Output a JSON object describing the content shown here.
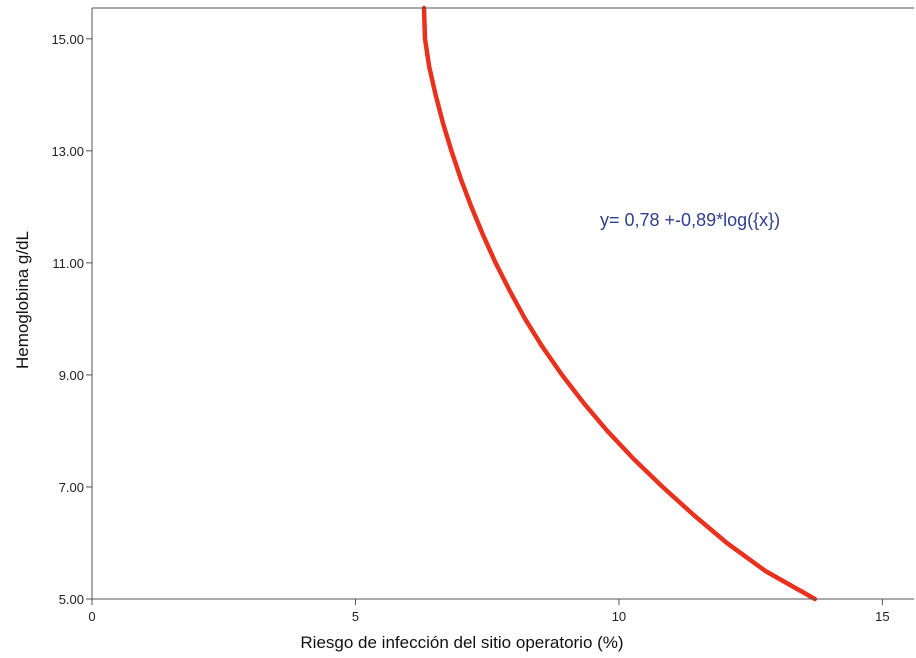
{
  "chart_data": {
    "type": "line",
    "title": "",
    "xlabel": "Riesgo de infección del sitio operatorio (%)",
    "ylabel": "Hemoglobina g/dL",
    "xlim": [
      0,
      15.6
    ],
    "ylim": [
      5.0,
      15.55
    ],
    "x_ticks": [
      0,
      5,
      10,
      15
    ],
    "x_tick_labels": [
      "0",
      "5",
      "10",
      "15"
    ],
    "y_ticks": [
      5,
      7,
      9,
      11,
      13,
      15
    ],
    "y_tick_labels": [
      "5.00",
      "7.00",
      "9.00",
      "11.00",
      "13.00",
      "15.00"
    ],
    "grid": false,
    "annotation": "y= 0,78 +-0,89*log({x})",
    "series": [
      {
        "color": "#e8321e",
        "points": [
          {
            "x": 6.3,
            "y": 15.55
          },
          {
            "x": 6.32,
            "y": 15.0
          },
          {
            "x": 6.4,
            "y": 14.5
          },
          {
            "x": 6.52,
            "y": 14.0
          },
          {
            "x": 6.66,
            "y": 13.5
          },
          {
            "x": 6.82,
            "y": 13.0
          },
          {
            "x": 7.0,
            "y": 12.5
          },
          {
            "x": 7.2,
            "y": 12.0
          },
          {
            "x": 7.42,
            "y": 11.5
          },
          {
            "x": 7.66,
            "y": 11.0
          },
          {
            "x": 7.93,
            "y": 10.5
          },
          {
            "x": 8.22,
            "y": 10.0
          },
          {
            "x": 8.55,
            "y": 9.5
          },
          {
            "x": 8.92,
            "y": 9.0
          },
          {
            "x": 9.33,
            "y": 8.5
          },
          {
            "x": 9.78,
            "y": 8.0
          },
          {
            "x": 10.28,
            "y": 7.5
          },
          {
            "x": 10.83,
            "y": 7.0
          },
          {
            "x": 11.42,
            "y": 6.5
          },
          {
            "x": 12.05,
            "y": 6.0
          },
          {
            "x": 12.78,
            "y": 5.5
          },
          {
            "x": 13.72,
            "y": 5.0
          }
        ]
      }
    ]
  },
  "colors": {
    "curve": "#e8321e",
    "annotation": "#2f3f8c",
    "axis": "#555555"
  }
}
